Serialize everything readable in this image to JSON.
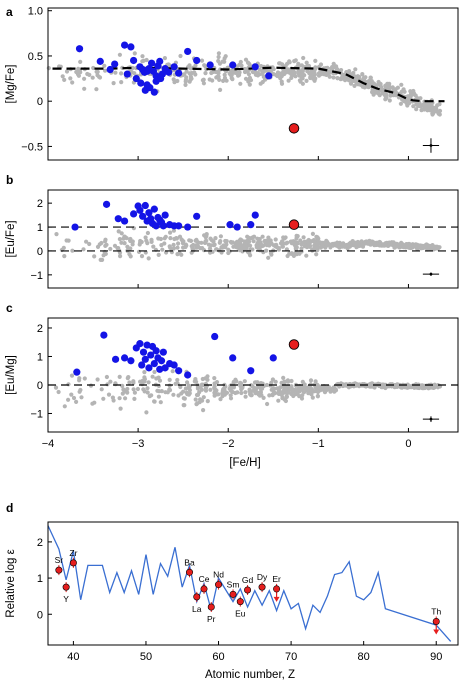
{
  "figure": {
    "panels": [
      {
        "letter": "a",
        "ylabel": "[Mg/Fe]",
        "yticks": [
          "1.0",
          "0.5",
          "0",
          "−0.5"
        ]
      },
      {
        "letter": "b",
        "ylabel": "[Eu/Fe]",
        "yticks": [
          "2",
          "1",
          "0",
          "−1"
        ]
      },
      {
        "letter": "c",
        "ylabel": "[Eu/Mg]",
        "yticks": [
          "2",
          "1",
          "0",
          "−1"
        ]
      }
    ],
    "shared_x": {
      "xlabel": "[Fe/H]",
      "xticks": [
        "−4",
        "−3",
        "−2",
        "−1",
        "0"
      ]
    },
    "panel_d": {
      "letter": "d",
      "ylabel": "Relative log ε",
      "xlabel": "Atomic number, Z",
      "yticks": [
        "2",
        "1",
        "0"
      ],
      "xticks": [
        "40",
        "50",
        "60",
        "70",
        "80",
        "90"
      ]
    },
    "colors": {
      "gray": "#b4b4b4",
      "blue": "#1414e6",
      "red": "#e61e1e",
      "line": "#3a6fd2"
    }
  },
  "chart_data": [
    {
      "type": "scatter",
      "panel": "a",
      "xlabel": "[Fe/H]",
      "ylabel": "[Mg/Fe]",
      "xlim": [
        -4.0,
        0.55
      ],
      "ylim": [
        -0.65,
        1.03
      ],
      "grey_cloud_note": "",
      "series": [
        {
          "name": "",
          "marker": "blue",
          "x": [
            -3.65,
            -3.42,
            -3.31,
            -3.26,
            -3.15,
            -3.12,
            -3.05,
            -3.02,
            -2.98,
            -2.95,
            -2.93,
            -2.9,
            -2.88,
            -2.85,
            -2.83,
            -2.8,
            -2.78,
            -2.76,
            -2.73,
            -2.7,
            -2.66,
            -2.6,
            -2.55,
            -2.45,
            -2.35,
            -2.2,
            -1.95,
            -1.7,
            -1.55,
            -2.92,
            -2.97,
            -2.87,
            -2.8,
            -2.82,
            -2.75,
            -3.08,
            -2.9
          ],
          "y": [
            0.58,
            0.44,
            0.35,
            0.41,
            0.62,
            0.3,
            0.45,
            0.25,
            0.38,
            0.35,
            0.32,
            0.18,
            0.36,
            0.42,
            0.33,
            0.28,
            0.39,
            0.44,
            0.3,
            0.36,
            0.32,
            0.38,
            0.31,
            0.55,
            0.45,
            0.4,
            0.4,
            0.38,
            0.28,
            0.12,
            0.2,
            0.15,
            0.22,
            0.1,
            0.25,
            0.6,
            0.33
          ]
        },
        {
          "name": "",
          "marker": "red",
          "x": [
            -1.27
          ],
          "y": [
            -0.3
          ]
        }
      ],
      "trend_line": {
        "x": [
          -3.95,
          -3.3,
          -3.0,
          -2.5,
          -2.0,
          -1.5,
          -1.0,
          -0.7,
          -0.5,
          -0.35,
          -0.15,
          0.0,
          0.05,
          0.15,
          0.25,
          0.4
        ],
        "y": [
          0.36,
          0.36,
          0.37,
          0.36,
          0.35,
          0.37,
          0.36,
          0.3,
          0.2,
          0.14,
          0.09,
          0.02,
          0.01,
          0.0,
          0.0,
          0.0
        ]
      },
      "error_bar": {
        "x": 0.25,
        "y": -0.49,
        "xerr": 0.09,
        "yerr": 0.08
      }
    },
    {
      "type": "scatter",
      "panel": "b",
      "xlabel": "[Fe/H]",
      "ylabel": "[Eu/Fe]",
      "xlim": [
        -4.0,
        0.55
      ],
      "ylim": [
        -1.55,
        2.55
      ],
      "series": [
        {
          "name": "",
          "marker": "blue",
          "x": [
            -3.7,
            -3.35,
            -3.22,
            -3.15,
            -3.05,
            -3.0,
            -2.98,
            -2.95,
            -2.92,
            -2.9,
            -2.88,
            -2.86,
            -2.84,
            -2.82,
            -2.8,
            -2.78,
            -2.76,
            -2.74,
            -2.72,
            -2.7,
            -2.65,
            -2.6,
            -2.55,
            -2.45,
            -2.35,
            -1.98,
            -1.9,
            -1.75,
            -1.7
          ],
          "y": [
            1.0,
            1.95,
            1.35,
            1.25,
            1.55,
            1.88,
            1.7,
            1.45,
            1.9,
            1.25,
            1.6,
            1.35,
            1.15,
            1.75,
            1.05,
            1.4,
            1.3,
            1.2,
            1.05,
            1.5,
            1.1,
            1.05,
            1.05,
            1.0,
            1.45,
            1.1,
            1.0,
            1.1,
            1.5
          ]
        },
        {
          "name": "",
          "marker": "red",
          "x": [
            -1.27
          ],
          "y": [
            1.1
          ]
        }
      ],
      "reference_lines": [
        1.0,
        0.0
      ],
      "error_bar": {
        "x": 0.25,
        "y": -0.97,
        "xerr": 0.09,
        "yerr": 0.07
      }
    },
    {
      "type": "scatter",
      "panel": "c",
      "xlabel": "[Fe/H]",
      "ylabel": "[Eu/Mg]",
      "xlim": [
        -4.0,
        0.55
      ],
      "ylim": [
        -1.65,
        2.35
      ],
      "series": [
        {
          "name": "",
          "marker": "blue",
          "x": [
            -3.68,
            -3.38,
            -3.25,
            -3.15,
            -3.08,
            -3.02,
            -2.98,
            -2.96,
            -2.94,
            -2.92,
            -2.9,
            -2.88,
            -2.86,
            -2.84,
            -2.82,
            -2.8,
            -2.78,
            -2.76,
            -2.74,
            -2.72,
            -2.7,
            -2.65,
            -2.6,
            -2.55,
            -2.45,
            -2.15,
            -1.95,
            -1.75,
            -1.5
          ],
          "y": [
            0.45,
            1.75,
            0.9,
            0.95,
            0.85,
            1.3,
            1.45,
            0.7,
            1.15,
            0.9,
            1.4,
            0.6,
            1.05,
            1.35,
            0.75,
            1.2,
            0.95,
            0.55,
            0.85,
            1.15,
            0.6,
            0.75,
            0.7,
            0.5,
            0.35,
            1.7,
            0.95,
            0.5,
            0.95
          ]
        },
        {
          "name": "",
          "marker": "red",
          "x": [
            -1.27
          ],
          "y": [
            1.42
          ]
        }
      ],
      "reference_lines": [
        0.0
      ],
      "error_bar": {
        "x": 0.25,
        "y": -1.2,
        "xerr": 0.09,
        "yerr": 0.1
      }
    },
    {
      "type": "line",
      "panel": "d",
      "xlabel": "Atomic number, Z",
      "ylabel": "Relative log ε",
      "xlim": [
        36.5,
        93
      ],
      "ylim": [
        -0.85,
        2.55
      ],
      "line_series": {
        "x": [
          36.5,
          38,
          39,
          40,
          41,
          42,
          44,
          45,
          46,
          47,
          48,
          49,
          50,
          51,
          52,
          53,
          54,
          55,
          56,
          57,
          58,
          59,
          60,
          62,
          63,
          64,
          65,
          66,
          67,
          68,
          69,
          70,
          71,
          72,
          73,
          74,
          75,
          76,
          77,
          78,
          79,
          80,
          81,
          82,
          83,
          90,
          92
        ],
        "y": [
          2.45,
          1.8,
          0.95,
          1.75,
          0.4,
          1.35,
          1.35,
          0.6,
          1.15,
          0.6,
          1.2,
          0.55,
          1.65,
          0.55,
          1.4,
          1.05,
          1.85,
          0.75,
          1.35,
          0.35,
          0.85,
          0.1,
          1.0,
          0.35,
          0.7,
          0.2,
          0.65,
          0.25,
          0.65,
          0.1,
          0.65,
          0.15,
          0.3,
          -0.4,
          0.25,
          0.05,
          0.5,
          1.1,
          1.15,
          1.45,
          0.5,
          0.4,
          0.6,
          1.15,
          0.15,
          -0.3,
          -0.75
        ]
      },
      "points": [
        {
          "element": "Sr",
          "Z": 38,
          "value": 1.22
        },
        {
          "element": "Y",
          "Z": 39,
          "value": 0.75
        },
        {
          "element": "Zr",
          "Z": 40,
          "value": 1.42
        },
        {
          "element": "Ba",
          "Z": 56,
          "value": 1.16
        },
        {
          "element": "La",
          "Z": 57,
          "value": 0.48
        },
        {
          "element": "Ce",
          "Z": 58,
          "value": 0.7
        },
        {
          "element": "Pr",
          "Z": 59,
          "value": 0.2
        },
        {
          "element": "Nd",
          "Z": 60,
          "value": 0.82
        },
        {
          "element": "Sm",
          "Z": 62,
          "value": 0.55
        },
        {
          "element": "Eu",
          "Z": 63,
          "value": 0.35
        },
        {
          "element": "Gd",
          "Z": 64,
          "value": 0.67
        },
        {
          "element": "Dy",
          "Z": 66,
          "value": 0.75
        },
        {
          "element": "Er",
          "Z": 68,
          "value": 0.7
        },
        {
          "element": "Th",
          "Z": 90,
          "value": -0.2
        }
      ],
      "upper_limits": [
        "Er",
        "Th"
      ]
    }
  ]
}
